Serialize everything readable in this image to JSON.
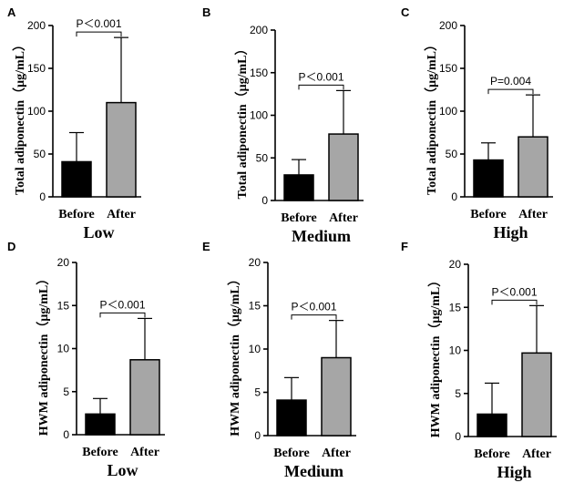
{
  "chart_data": [
    {
      "panel": "A",
      "type": "bar",
      "group": "Low",
      "ylabel": "Total adiponectin（μg/mL）",
      "ylim": [
        0,
        200
      ],
      "yticks": [
        "0",
        "50",
        "100",
        "150",
        "200"
      ],
      "categories": [
        "Before",
        "After"
      ],
      "values": [
        41,
        110
      ],
      "errors": [
        34,
        76
      ],
      "significance": "P＜0.001"
    },
    {
      "panel": "B",
      "type": "bar",
      "group": "Medium",
      "ylabel": "Total adiponectin（μg/mL）",
      "ylim": [
        0,
        200
      ],
      "yticks": [
        "0",
        "50",
        "100",
        "150",
        "200"
      ],
      "categories": [
        "Before",
        "After"
      ],
      "values": [
        30,
        78
      ],
      "errors": [
        18,
        51
      ],
      "significance": "P＜0.001"
    },
    {
      "panel": "C",
      "type": "bar",
      "group": "High",
      "ylabel": "Total adiponectin（μg/mL）",
      "ylim": [
        0,
        200
      ],
      "yticks": [
        "0",
        "50",
        "100",
        "150",
        "200"
      ],
      "categories": [
        "Before",
        "After"
      ],
      "values": [
        43,
        70
      ],
      "errors": [
        20,
        49
      ],
      "significance": "P=0.004"
    },
    {
      "panel": "D",
      "type": "bar",
      "group": "Low",
      "ylabel": "HWM adiponectin（μg/mL）",
      "ylim": [
        0,
        20
      ],
      "yticks": [
        "0",
        "5",
        "10",
        "15",
        "20"
      ],
      "categories": [
        "Before",
        "After"
      ],
      "values": [
        2.4,
        8.7
      ],
      "errors": [
        1.8,
        4.8
      ],
      "significance": "P＜0.001"
    },
    {
      "panel": "E",
      "type": "bar",
      "group": "Medium",
      "ylabel": "HWM adiponectin（μg/mL）",
      "ylim": [
        0,
        20
      ],
      "yticks": [
        "0",
        "5",
        "10",
        "15",
        "20"
      ],
      "categories": [
        "Before",
        "After"
      ],
      "values": [
        4.1,
        9.0
      ],
      "errors": [
        2.6,
        4.3
      ],
      "significance": "P＜0.001"
    },
    {
      "panel": "F",
      "type": "bar",
      "group": "High",
      "ylabel": "HWM adiponectin（μg/mL）",
      "ylim": [
        0,
        20
      ],
      "yticks": [
        "0",
        "5",
        "10",
        "15",
        "20"
      ],
      "categories": [
        "Before",
        "After"
      ],
      "values": [
        2.6,
        9.7
      ],
      "errors": [
        3.6,
        5.5
      ],
      "significance": "P＜0.001"
    }
  ],
  "colors": {
    "before": "#000000",
    "after": "#a6a6a6",
    "axis": "#000000"
  }
}
